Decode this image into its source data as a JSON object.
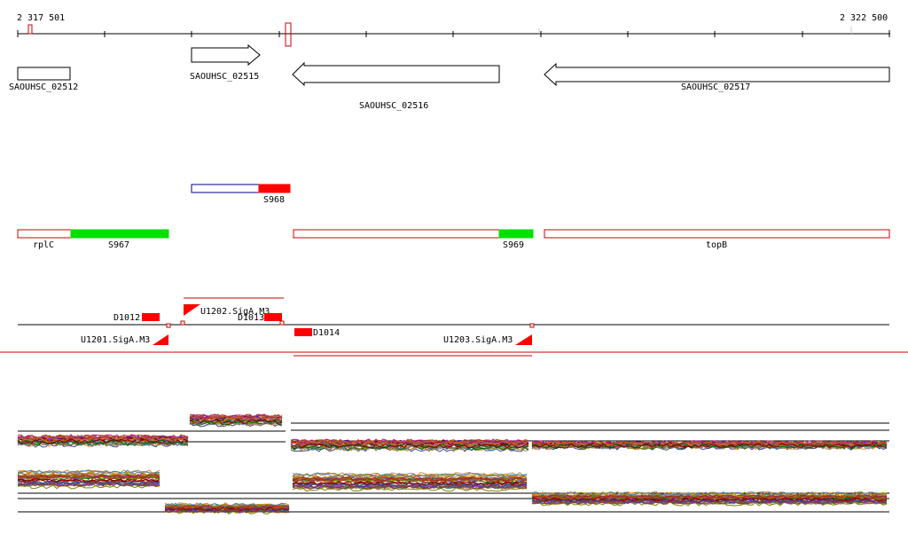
{
  "ruler": {
    "start_label": "2 317 501",
    "end_label": "2 322 500"
  },
  "genes": [
    {
      "id": "g1",
      "label": "SAOUHSC_02512",
      "strand": "none"
    },
    {
      "id": "g2",
      "label": "SAOUHSC_02515",
      "strand": "+"
    },
    {
      "id": "g3",
      "label": "SAOUHSC_02516",
      "strand": "-"
    },
    {
      "id": "g4",
      "label": "SAOUHSC_02517",
      "strand": "-"
    }
  ],
  "segments": [
    {
      "id": "s968",
      "label": "S968"
    },
    {
      "id": "rplc",
      "label": "rplC"
    },
    {
      "id": "s967",
      "label": "S967"
    },
    {
      "id": "s969",
      "label": "S969"
    },
    {
      "id": "topb",
      "label": "topB"
    }
  ],
  "features": [
    {
      "id": "d1012",
      "label": "D1012"
    },
    {
      "id": "u1202",
      "label": "U1202.SigA.M3"
    },
    {
      "id": "d1013",
      "label": "D1013"
    },
    {
      "id": "d1014",
      "label": "D1014"
    },
    {
      "id": "u1201",
      "label": "U1201.SigA.M3"
    },
    {
      "id": "u1203",
      "label": "U1203.SigA.M3"
    }
  ],
  "colors": {
    "gene_outline": "#000000",
    "segment_outline": "#cc0000",
    "segment_fill_red": "#ff0000",
    "segment_fill_green": "#00e000",
    "s968_outline": "#000080"
  }
}
